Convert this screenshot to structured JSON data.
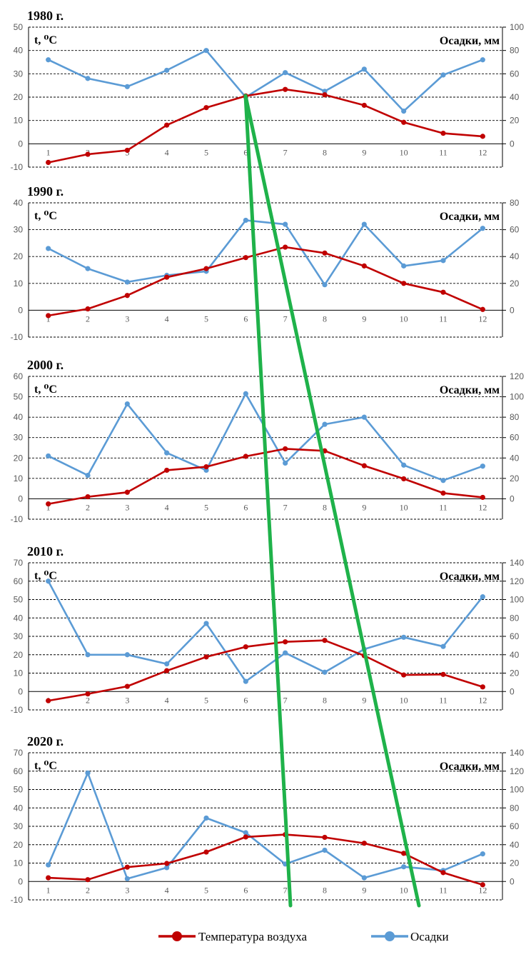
{
  "colors": {
    "temperature": "#c00000",
    "precipitation": "#5b9bd5",
    "overlay": "#1fb24a"
  },
  "legend": {
    "temperature": "Температура воздуха",
    "precipitation": "Осадки"
  },
  "chart_data": [
    {
      "type": "line",
      "title": "1980 г.",
      "ylabel": "t, ⁰C",
      "y2label": "Осадки, мм",
      "categories": [
        "1",
        "2",
        "3",
        "4",
        "5",
        "6",
        "7",
        "8",
        "9",
        "10",
        "11",
        "12"
      ],
      "ylim": [
        -10,
        50
      ],
      "y_ticks": [
        -10,
        0,
        10,
        20,
        30,
        40,
        50
      ],
      "y2lim": [
        -20,
        100
      ],
      "y2_ticks": [
        0,
        20,
        40,
        60,
        80,
        100
      ],
      "grid": true,
      "series": [
        {
          "key": "temperature",
          "axis": "left",
          "values": [
            -8,
            -4.5,
            -2.8,
            8,
            15.5,
            20.5,
            23.3,
            21,
            16.5,
            9.2,
            4.5,
            3.2
          ]
        },
        {
          "key": "precipitation",
          "axis": "right",
          "values": [
            72,
            56,
            49,
            63,
            80,
            40,
            61,
            45,
            64,
            28,
            59,
            72
          ]
        }
      ]
    },
    {
      "type": "line",
      "title": "1990 г.",
      "ylabel": "t, ⁰C",
      "y2label": "Осадки, мм",
      "categories": [
        "1",
        "2",
        "3",
        "4",
        "5",
        "6",
        "7",
        "8",
        "9",
        "10",
        "11",
        "12"
      ],
      "ylim": [
        -10,
        40
      ],
      "y_ticks": [
        -10,
        0,
        10,
        20,
        30,
        40
      ],
      "y2lim": [
        -20,
        80
      ],
      "y2_ticks": [
        0,
        20,
        40,
        60,
        80
      ],
      "grid": true,
      "series": [
        {
          "key": "temperature",
          "axis": "left",
          "values": [
            -2,
            0.5,
            5.5,
            12.3,
            15.5,
            19.6,
            23.5,
            21.3,
            16.5,
            10,
            6.7,
            0.3
          ]
        },
        {
          "key": "precipitation",
          "axis": "right",
          "values": [
            46,
            31,
            21,
            26,
            29,
            67,
            64,
            19,
            64,
            33,
            37,
            61
          ]
        }
      ]
    },
    {
      "type": "line",
      "title": "2000 г.",
      "ylabel": "t, ⁰C",
      "y2label": "Осадки, мм",
      "categories": [
        "1",
        "2",
        "3",
        "4",
        "5",
        "6",
        "7",
        "8",
        "9",
        "10",
        "11",
        "12"
      ],
      "ylim": [
        -10,
        60
      ],
      "y_ticks": [
        -10,
        0,
        10,
        20,
        30,
        40,
        50,
        60
      ],
      "y2lim": [
        -20,
        120
      ],
      "y2_ticks": [
        0,
        20,
        40,
        60,
        80,
        100,
        120
      ],
      "grid": true,
      "series": [
        {
          "key": "temperature",
          "axis": "left",
          "values": [
            -2.5,
            1,
            3.2,
            14,
            15.7,
            20.8,
            24.5,
            23.5,
            16.2,
            9.8,
            2.8,
            0.7
          ]
        },
        {
          "key": "precipitation",
          "axis": "right",
          "values": [
            42,
            23,
            93,
            45,
            28,
            103,
            35,
            73,
            80,
            33,
            18,
            32
          ]
        }
      ]
    },
    {
      "type": "line",
      "title": "2010 г.",
      "ylabel": "t, ⁰C",
      "y2label": "Осадки, мм",
      "categories": [
        "1",
        "2",
        "3",
        "4",
        "5",
        "6",
        "7",
        "8",
        "9",
        "10",
        "11",
        "12"
      ],
      "ylim": [
        -10,
        70
      ],
      "y_ticks": [
        -10,
        0,
        10,
        20,
        30,
        40,
        50,
        60,
        70
      ],
      "y2lim": [
        -20,
        140
      ],
      "y2_ticks": [
        0,
        20,
        40,
        60,
        80,
        100,
        120,
        140
      ],
      "grid": true,
      "series": [
        {
          "key": "temperature",
          "axis": "left",
          "values": [
            -5,
            -1.3,
            2.8,
            11.3,
            18.8,
            24.3,
            27,
            27.8,
            19.5,
            9,
            9.3,
            2.5
          ]
        },
        {
          "key": "precipitation",
          "axis": "right",
          "values": [
            120,
            40,
            40,
            30,
            74,
            11,
            42,
            21,
            46,
            59,
            49,
            103
          ]
        }
      ]
    },
    {
      "type": "line",
      "title": "2020 г.",
      "ylabel": "t, ⁰C",
      "y2label": "Осадки, мм",
      "categories": [
        "1",
        "2",
        "3",
        "4",
        "5",
        "6",
        "7",
        "8",
        "9",
        "10",
        "11",
        "12"
      ],
      "ylim": [
        -10,
        70
      ],
      "y_ticks": [
        -10,
        0,
        10,
        20,
        30,
        40,
        50,
        60,
        70
      ],
      "y2lim": [
        -20,
        140
      ],
      "y2_ticks": [
        0,
        20,
        40,
        60,
        80,
        100,
        120,
        140
      ],
      "grid": true,
      "series": [
        {
          "key": "temperature",
          "axis": "left",
          "values": [
            2,
            1,
            7.8,
            9.8,
            16,
            24.2,
            25.5,
            24,
            20.8,
            15.3,
            4.8,
            -1.8
          ]
        },
        {
          "key": "precipitation",
          "axis": "right",
          "values": [
            18,
            118,
            3,
            15,
            69,
            53,
            19,
            34,
            4,
            16,
            12,
            30
          ]
        }
      ]
    }
  ]
}
